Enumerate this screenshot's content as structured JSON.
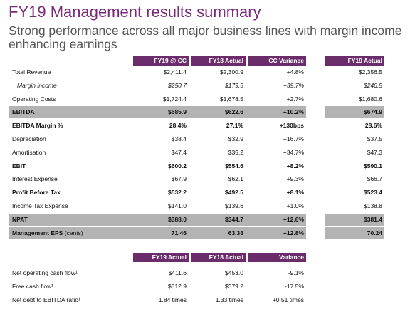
{
  "header": {
    "title": "FY19 Management results summary",
    "subtitle": "Strong performance across all major business lines with margin income enhancing earnings"
  },
  "table": {
    "columns": [
      "FY19 @ CC",
      "FY18 Actual",
      "CC Variance",
      "FY19 Actual"
    ],
    "rows": [
      [
        "Total Revenue",
        "$2,411.4",
        "$2,300.9",
        "+4.8%",
        "$2,356.5"
      ],
      [
        "Margin income",
        "$250.7",
        "$179.5",
        "+39.7%",
        "$246.5"
      ],
      [
        "Operating Costs",
        "$1,724.4",
        "$1,678.5",
        "+2.7%",
        "$1,680.6"
      ],
      [
        "EBITDA",
        "$685.9",
        "$622.6",
        "+10.2%",
        "$674.9"
      ],
      [
        "EBITDA Margin %",
        "28.4%",
        "27.1%",
        "+130bps",
        "28.6%"
      ],
      [
        "Depreciation",
        "$38.4",
        "$32.9",
        "+16.7%",
        "$37.5"
      ],
      [
        "Amortisation",
        "$47.4",
        "$35.2",
        "+34.7%",
        "$47.3"
      ],
      [
        "EBIT",
        "$600.2",
        "$554.6",
        "+8.2%",
        "$590.1"
      ],
      [
        "Interest Expense",
        "$67.9",
        "$62.1",
        "+9.3%",
        "$66.7"
      ],
      [
        "Profit Before Tax",
        "$532.2",
        "$492.5",
        "+8.1%",
        "$523.4"
      ],
      [
        "Income Tax Expense",
        "$141.0",
        "$139.6",
        "+1.0%",
        "$138.8"
      ],
      [
        "NPAT",
        "$388.0",
        "$344.7",
        "+12.6%",
        "$381.4"
      ],
      [
        "Management EPS",
        "71.46",
        "63.38",
        "+12.8%",
        "70.24"
      ]
    ],
    "eps_unit": "(cents)"
  },
  "cash_table": {
    "columns": [
      "FY19 Actual",
      "FY18 Actual",
      "Variance"
    ],
    "rows": [
      [
        "Net operating cash flow¹",
        "$411.6",
        "$453.0",
        "-9.1%"
      ],
      [
        "Free cash flow¹",
        "$312.9",
        "$379.2",
        "-17.5%"
      ],
      [
        "Net debt to EBITDA ratio¹",
        "1.84 times",
        "1.33 times",
        "+0.51 times"
      ]
    ]
  }
}
